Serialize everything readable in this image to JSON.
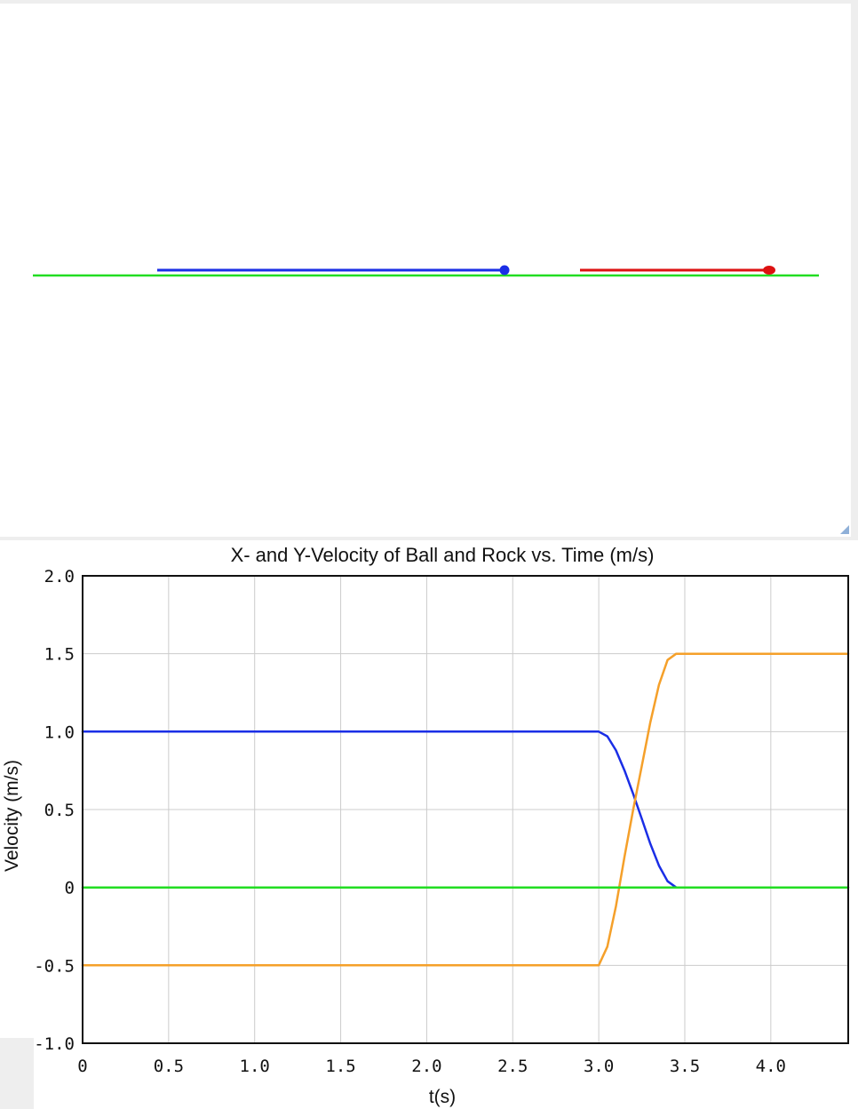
{
  "simulation": {
    "colors": {
      "ground": "#22dd22",
      "ball": "#1a2ee6",
      "rock": "#dd1111"
    }
  },
  "chart_data": {
    "type": "line",
    "title": "X- and Y-Velocity of Ball and Rock vs. Time (m/s)",
    "xlabel": "t(s)",
    "ylabel": "Velocity (m/s)",
    "xlim": [
      0,
      4.45
    ],
    "ylim": [
      -1.0,
      2.0
    ],
    "x_ticks": [
      0,
      0.5,
      1.0,
      1.5,
      2.0,
      2.5,
      3.0,
      3.5,
      4.0
    ],
    "x_tick_labels": [
      "0",
      "0.5",
      "1.0",
      "1.5",
      "2.0",
      "2.5",
      "3.0",
      "3.5",
      "4.0"
    ],
    "y_ticks": [
      2.0,
      1.5,
      1.0,
      0.5,
      0,
      -0.5,
      -1.0
    ],
    "y_tick_labels": [
      "2.0",
      "1.5",
      "1.0",
      "0.5",
      "0",
      "-0.5",
      "-1.0"
    ],
    "grid": true,
    "series": [
      {
        "color": "#1a2ee6",
        "x": [
          0,
          3.0,
          3.05,
          3.1,
          3.15,
          3.2,
          3.25,
          3.3,
          3.35,
          3.4,
          3.45
        ],
        "y": [
          1.0,
          1.0,
          0.97,
          0.88,
          0.75,
          0.6,
          0.44,
          0.28,
          0.14,
          0.04,
          0
        ]
      },
      {
        "color": "#f5a02a",
        "x": [
          0,
          3.0,
          3.05,
          3.1,
          3.15,
          3.2,
          3.25,
          3.3,
          3.35,
          3.4,
          3.45,
          4.45
        ],
        "y": [
          -0.5,
          -0.5,
          -0.38,
          -0.12,
          0.2,
          0.5,
          0.78,
          1.06,
          1.3,
          1.46,
          1.5,
          1.5
        ]
      },
      {
        "color": "#22dd22",
        "x": [
          0,
          4.45
        ],
        "y": [
          0,
          0
        ]
      }
    ]
  }
}
